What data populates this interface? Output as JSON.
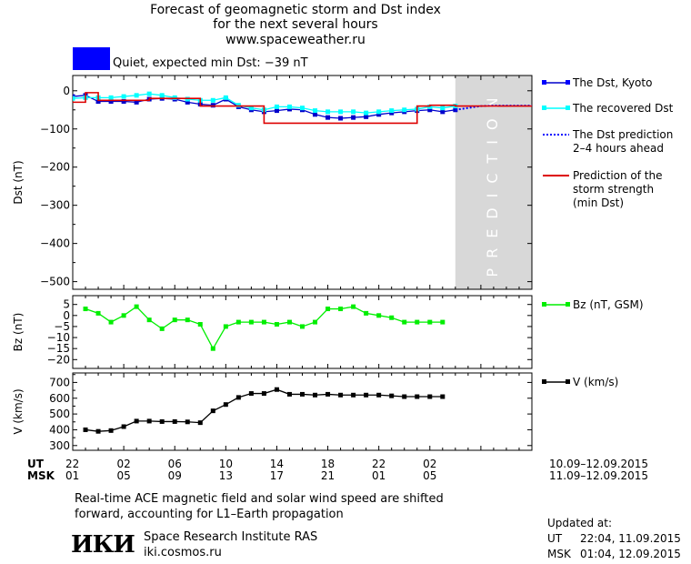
{
  "header": {
    "title_lines": [
      "Forecast of geomagnetic storm and Dst index",
      "for the next several hours"
    ],
    "website": "www.spaceweather.ru"
  },
  "status": {
    "color": "#0000ff",
    "text": "Quiet, expected min Dst: −39 nT"
  },
  "legend": {
    "dst_kyoto": "The Dst, Kyoto",
    "recovered": "The recovered Dst",
    "prediction_lines": [
      "The Dst prediction",
      "2–4 hours ahead"
    ],
    "strength_lines": [
      "Prediction of the",
      "storm strength",
      "(min Dst)"
    ],
    "bz": "Bz (nT, GSM)",
    "v": "V (km/s)"
  },
  "x_axis": {
    "ut_label": "UT",
    "msk_label": "MSK",
    "ut_ticks": [
      "22",
      "02",
      "06",
      "10",
      "14",
      "18",
      "22",
      "02"
    ],
    "msk_ticks": [
      "01",
      "05",
      "09",
      "13",
      "17",
      "21",
      "01",
      "05"
    ],
    "ut_range": "10.09–12.09.2015",
    "msk_range": "11.09–12.09.2015"
  },
  "chart_data": [
    {
      "type": "line",
      "ylabel": "Dst (nT)",
      "ylim": [
        -520,
        40
      ],
      "yticks": [
        0,
        -100,
        -200,
        -300,
        -400,
        -500
      ],
      "ytick_labels": [
        "0",
        "−100",
        "−200",
        "−300",
        "−400",
        "−500"
      ],
      "x_hours_since_22ut": [
        0,
        36
      ],
      "prediction_zone": {
        "from": 30,
        "to": 36,
        "label": "PREDICTION"
      },
      "series": [
        {
          "name": "The Dst, Kyoto",
          "color": "#0000cc",
          "x": [
            0,
            1,
            2,
            3,
            4,
            5,
            6,
            7,
            8,
            9,
            10,
            11,
            12,
            13,
            14,
            15,
            16,
            17,
            18,
            19,
            20,
            21,
            22,
            23,
            24,
            25,
            26,
            27,
            28,
            29,
            30
          ],
          "y": [
            -15,
            -12,
            -28,
            -28,
            -28,
            -30,
            -22,
            -20,
            -22,
            -30,
            -35,
            -38,
            -22,
            -42,
            -50,
            -55,
            -52,
            -48,
            -50,
            -62,
            -70,
            -72,
            -70,
            -68,
            -62,
            -58,
            -55,
            -52,
            -50,
            -55,
            -50
          ]
        },
        {
          "name": "The recovered Dst",
          "color": "#00ffff",
          "x": [
            0,
            1,
            2,
            3,
            4,
            5,
            6,
            7,
            8,
            9,
            10,
            11,
            12,
            13,
            14,
            15,
            16,
            17,
            18,
            19,
            20,
            21,
            22,
            23,
            24,
            25,
            26,
            27,
            28,
            29,
            30
          ],
          "y": [
            -20,
            -18,
            -18,
            -18,
            -15,
            -12,
            -8,
            -12,
            -18,
            -22,
            -25,
            -25,
            -18,
            -38,
            -45,
            -50,
            -42,
            -42,
            -45,
            -52,
            -55,
            -55,
            -55,
            -58,
            -55,
            -52,
            -50,
            -48,
            -42,
            -45,
            -40
          ]
        },
        {
          "name": "The Dst prediction 2–4 hours ahead",
          "color": "#0000ff",
          "dashed": true,
          "x": [
            30,
            31,
            32,
            33,
            34,
            35,
            36
          ],
          "y": [
            -50,
            -45,
            -40,
            -39,
            -39,
            -39,
            -39
          ]
        },
        {
          "name": "Prediction of the storm strength (min Dst)",
          "color": "#dd0000",
          "step": true,
          "x": [
            0,
            1,
            2,
            3,
            5,
            6,
            8,
            10,
            11,
            12,
            13,
            14,
            15,
            16,
            17,
            18,
            19,
            20,
            21,
            22,
            23,
            24,
            25,
            26,
            27,
            28,
            29,
            30,
            31,
            32,
            33,
            34,
            35,
            36
          ],
          "y": [
            -30,
            -5,
            -25,
            -25,
            -25,
            -20,
            -20,
            -40,
            -40,
            -40,
            -40,
            -40,
            -85,
            -85,
            -85,
            -85,
            -85,
            -85,
            -85,
            -85,
            -85,
            -85,
            -85,
            -85,
            -40,
            -38,
            -38,
            -40,
            -40,
            -40,
            -40,
            -40,
            -40,
            -40
          ]
        }
      ]
    },
    {
      "type": "line",
      "ylabel": "Bz (nT)",
      "ylim": [
        -24,
        9
      ],
      "yticks": [
        5,
        0,
        -5,
        -10,
        -15,
        -20
      ],
      "ytick_labels": [
        "5",
        "0",
        "−5",
        "−10",
        "−15",
        "−20"
      ],
      "series": [
        {
          "name": "Bz (nT, GSM)",
          "color": "#00ee00",
          "x": [
            1,
            2,
            3,
            4,
            5,
            6,
            7,
            8,
            9,
            10,
            11,
            12,
            13,
            14,
            15,
            16,
            17,
            18,
            19,
            20,
            21,
            22,
            23,
            24,
            25,
            26,
            27,
            28,
            29
          ],
          "y": [
            3,
            1,
            -3,
            0,
            4,
            -2,
            -6,
            -2,
            -2,
            -4,
            -15,
            -5,
            -3,
            -3,
            -3,
            -4,
            -3,
            -5,
            -3,
            3,
            3,
            4,
            1,
            0,
            -1,
            -3,
            -3,
            -3,
            -3
          ]
        }
      ]
    },
    {
      "type": "line",
      "ylabel": "V (km/s)",
      "ylim": [
        270,
        760
      ],
      "yticks": [
        700,
        600,
        500,
        400,
        300
      ],
      "ytick_labels": [
        "700",
        "600",
        "500",
        "400",
        "300"
      ],
      "series": [
        {
          "name": "V (km/s)",
          "color": "#000000",
          "x": [
            1,
            2,
            3,
            4,
            5,
            6,
            7,
            8,
            9,
            10,
            11,
            12,
            13,
            14,
            15,
            16,
            17,
            18,
            19,
            20,
            21,
            22,
            23,
            24,
            25,
            26,
            27,
            28,
            29
          ],
          "y": [
            400,
            390,
            395,
            420,
            455,
            455,
            452,
            452,
            450,
            445,
            520,
            560,
            605,
            630,
            630,
            655,
            625,
            625,
            620,
            625,
            620,
            620,
            620,
            620,
            615,
            610,
            610,
            610,
            610
          ]
        }
      ]
    }
  ],
  "footnote_lines": [
    "Real-time ACE magnetic field and solar wind speed are shifted",
    "forward, accounting for L1–Earth propagation"
  ],
  "institute": {
    "logo": "ИКИ",
    "name": "Space Research Institute RAS",
    "site": "iki.cosmos.ru"
  },
  "updated": {
    "label": "Updated at:",
    "ut_label": "UT",
    "ut_time": "22:04, 11.09.2015",
    "msk_label": "MSK",
    "msk_time": "01:04, 12.09.2015"
  }
}
